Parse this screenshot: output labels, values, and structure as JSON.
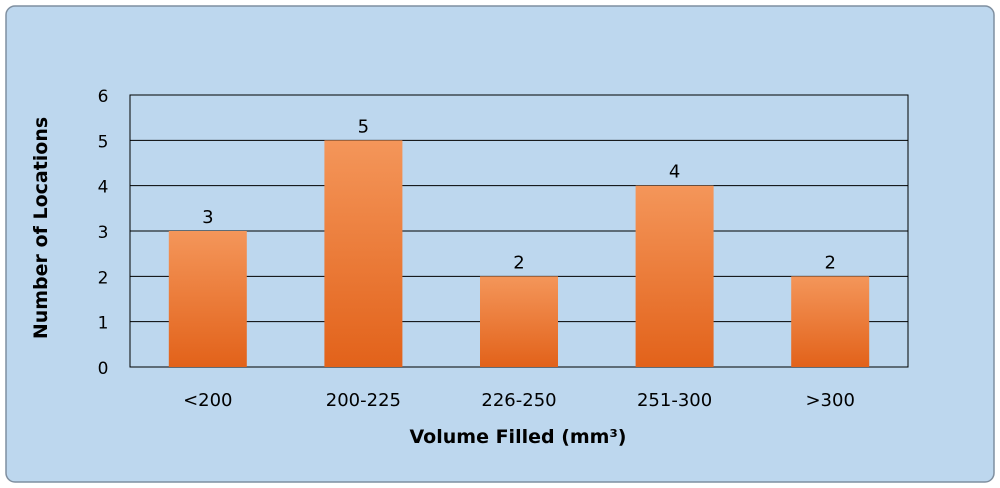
{
  "chart_data": {
    "type": "bar",
    "categories": [
      "<200",
      "200-225",
      "226-250",
      "251-300",
      ">300"
    ],
    "values": [
      3,
      5,
      2,
      4,
      2
    ],
    "data_labels": [
      "3",
      "5",
      "2",
      "4",
      "2"
    ],
    "yticks": [
      "0",
      "1",
      "2",
      "3",
      "4",
      "5",
      "6"
    ],
    "ylim": [
      0,
      6
    ],
    "title": "",
    "xlabel": "Volume Filled (mm³)",
    "ylabel": "Number of Locations",
    "grid": true,
    "legend": "none"
  },
  "colors": {
    "background": "#bdd7ee",
    "border": "#7f8fa0",
    "bar_top": "#f4965a",
    "bar_bottom": "#e2621a",
    "grid": "#000000"
  }
}
